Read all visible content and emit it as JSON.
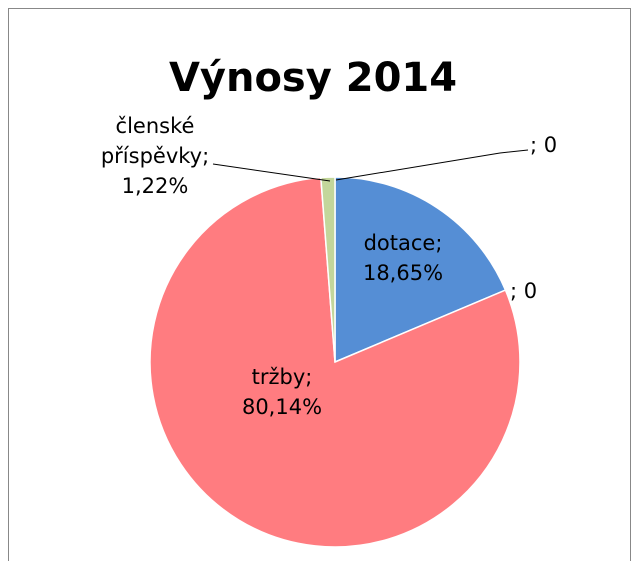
{
  "chart_data": {
    "type": "pie",
    "title": "Výnosy 2014",
    "values": [
      0,
      18.65,
      0,
      80.14,
      1.22
    ],
    "value_labels": [
      [
        "; 0"
      ],
      [
        "dotace;",
        "18,65%"
      ],
      [
        "; 0"
      ],
      [
        "tržby;",
        "80,14%"
      ],
      [
        "členské",
        "příspěvky;",
        "1,22%"
      ]
    ],
    "colors": [
      "#558ed5",
      "#558ed5",
      "#ff7c80",
      "#ff7c80",
      "#c3d69b"
    ]
  }
}
